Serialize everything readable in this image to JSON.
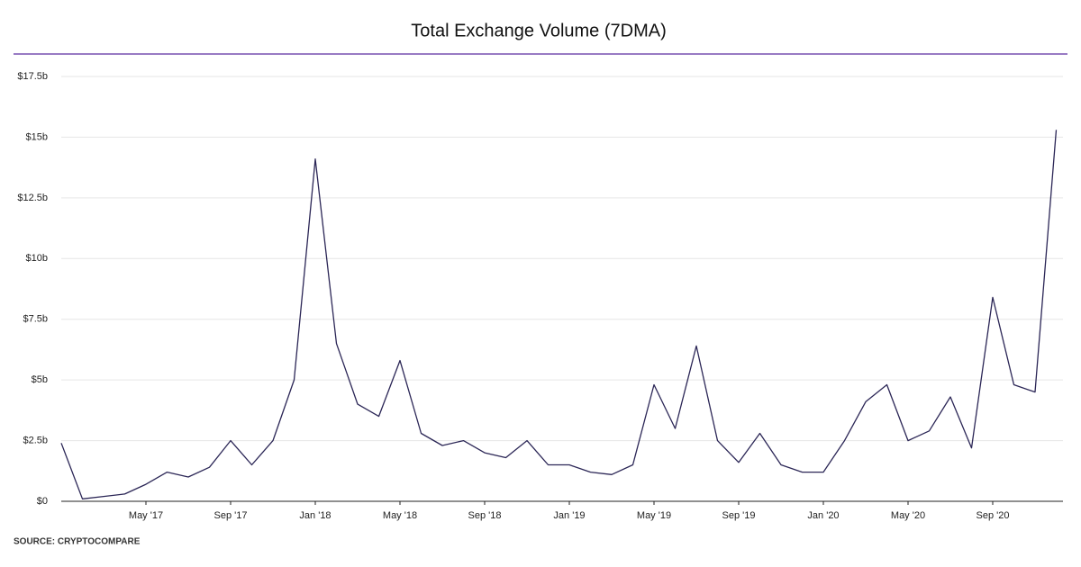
{
  "chart_data": {
    "type": "line",
    "title": "Total Exchange Volume (7DMA)",
    "source": "SOURCE: CRYPTOCOMPARE",
    "x": [
      "2017-01",
      "2017-02",
      "2017-03",
      "2017-04",
      "2017-05",
      "2017-06",
      "2017-07",
      "2017-08",
      "2017-09",
      "2017-10",
      "2017-11",
      "2017-12",
      "2018-01",
      "2018-02",
      "2018-03",
      "2018-04",
      "2018-05",
      "2018-06",
      "2018-07",
      "2018-08",
      "2018-09",
      "2018-10",
      "2018-11",
      "2018-12",
      "2019-01",
      "2019-02",
      "2019-03",
      "2019-04",
      "2019-05",
      "2019-06",
      "2019-07",
      "2019-08",
      "2019-09",
      "2019-10",
      "2019-11",
      "2019-12",
      "2020-01",
      "2020-02",
      "2020-03",
      "2020-04",
      "2020-05",
      "2020-06",
      "2020-07",
      "2020-08",
      "2020-09",
      "2020-10",
      "2020-11",
      "2020-12"
    ],
    "series": [
      {
        "name": "Total Exchange Volume",
        "color": "#2b2656",
        "values": [
          2.4,
          0.1,
          0.2,
          0.3,
          0.7,
          1.2,
          1.0,
          1.4,
          2.5,
          1.5,
          2.5,
          5.0,
          14.1,
          6.5,
          4.0,
          3.5,
          5.8,
          2.8,
          2.3,
          2.5,
          2.0,
          1.8,
          2.5,
          1.5,
          1.5,
          1.2,
          1.1,
          1.5,
          4.8,
          3.0,
          6.4,
          2.5,
          1.6,
          2.8,
          1.5,
          1.2,
          1.2,
          2.5,
          4.1,
          4.8,
          2.5,
          2.9,
          4.3,
          2.2,
          8.4,
          4.8,
          4.5,
          15.3
        ]
      }
    ],
    "xticks": [
      {
        "value": "2017-05",
        "label": "May '17"
      },
      {
        "value": "2017-09",
        "label": "Sep '17"
      },
      {
        "value": "2018-01",
        "label": "Jan '18"
      },
      {
        "value": "2018-05",
        "label": "May '18"
      },
      {
        "value": "2018-09",
        "label": "Sep '18"
      },
      {
        "value": "2019-01",
        "label": "Jan '19"
      },
      {
        "value": "2019-05",
        "label": "May '19"
      },
      {
        "value": "2019-09",
        "label": "Sep '19"
      },
      {
        "value": "2020-01",
        "label": "Jan '20"
      },
      {
        "value": "2020-05",
        "label": "May '20"
      },
      {
        "value": "2020-09",
        "label": "Sep '20"
      }
    ],
    "ylim": [
      0,
      17.5
    ],
    "yticks": [
      {
        "value": 0,
        "label": "$0"
      },
      {
        "value": 2.5,
        "label": "$2.5b"
      },
      {
        "value": 5,
        "label": "$5b"
      },
      {
        "value": 7.5,
        "label": "$7.5b"
      },
      {
        "value": 10,
        "label": "$10b"
      },
      {
        "value": 12.5,
        "label": "$12.5b"
      },
      {
        "value": 15,
        "label": "$15b"
      },
      {
        "value": 17.5,
        "label": "$17.5b"
      }
    ],
    "grid": true
  }
}
